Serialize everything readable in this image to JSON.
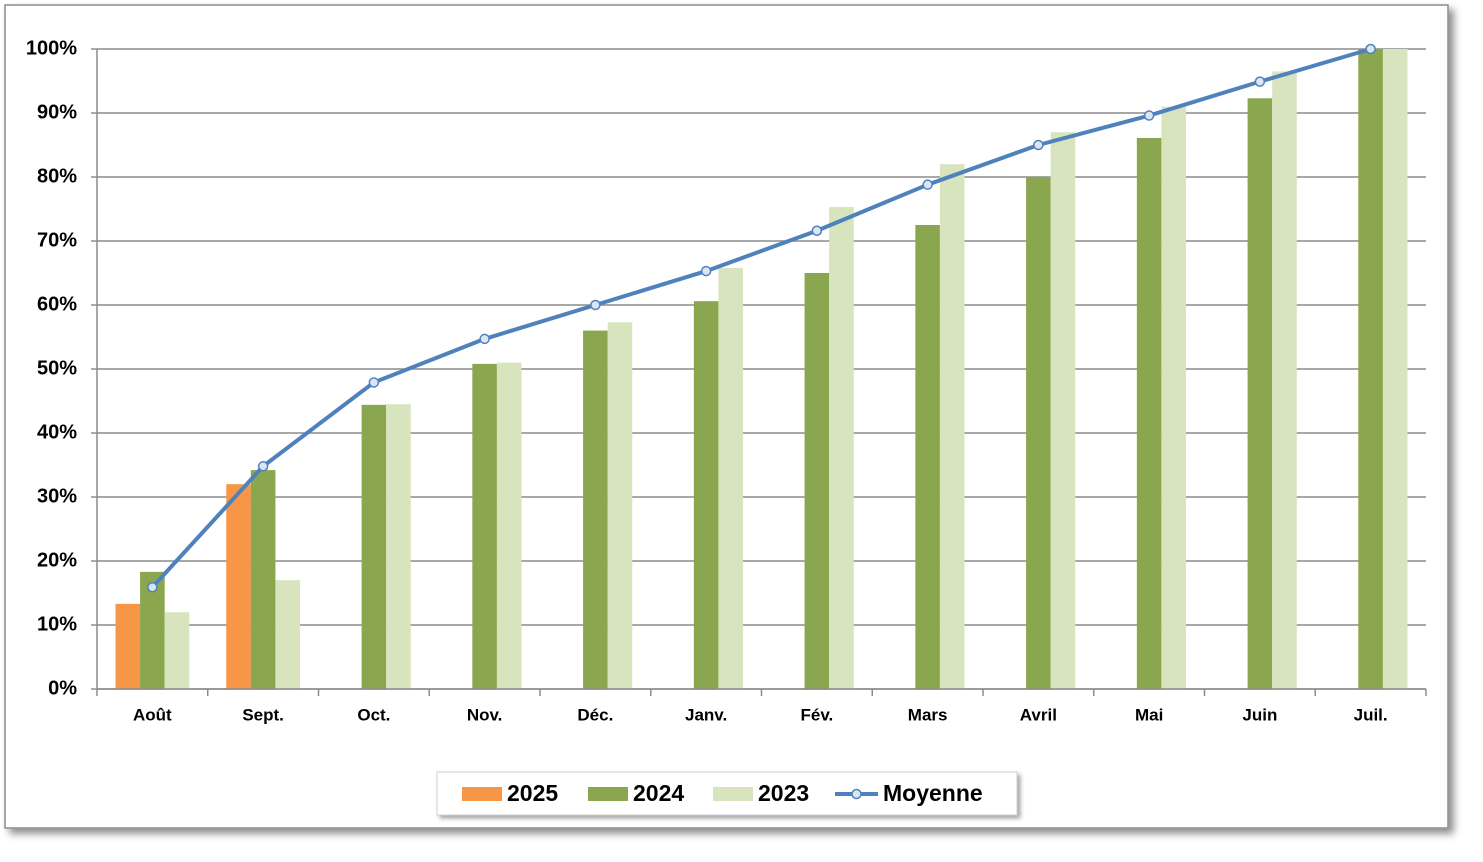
{
  "chart_data": {
    "type": "bar",
    "categories": [
      "Août",
      "Sept.",
      "Oct.",
      "Nov.",
      "Déc.",
      "Janv.",
      "Fév.",
      "Mars",
      "Avril",
      "Mai",
      "Juin",
      "Juil."
    ],
    "series": [
      {
        "name": "2025",
        "color": "#f79646",
        "values": [
          13.3,
          32,
          null,
          null,
          null,
          null,
          null,
          null,
          null,
          null,
          null,
          null
        ]
      },
      {
        "name": "2024",
        "color": "#8aa64f",
        "values": [
          18.3,
          34.2,
          44.4,
          50.8,
          56,
          60.6,
          65,
          72.5,
          80,
          86.1,
          92.3,
          100
        ]
      },
      {
        "name": "2023",
        "color": "#d7e4bd",
        "values": [
          12,
          17,
          44.5,
          51,
          57.3,
          65.8,
          75.3,
          82,
          87,
          91,
          96.5,
          100
        ]
      },
      {
        "name": "Moyenne",
        "type": "line",
        "color": "#4f81bd",
        "values": [
          15.9,
          34.8,
          47.9,
          54.7,
          60,
          65.3,
          71.6,
          78.8,
          85,
          89.6,
          94.9,
          100
        ]
      }
    ],
    "ylim": [
      0,
      100
    ],
    "yticks": [
      {
        "value": 0,
        "label": "0%"
      },
      {
        "value": 10,
        "label": "10%"
      },
      {
        "value": 20,
        "label": "20%"
      },
      {
        "value": 30,
        "label": "30%"
      },
      {
        "value": 40,
        "label": "40%"
      },
      {
        "value": 50,
        "label": "50%"
      },
      {
        "value": 60,
        "label": "60%"
      },
      {
        "value": 70,
        "label": "70%"
      },
      {
        "value": 80,
        "label": "80%"
      },
      {
        "value": 90,
        "label": "90%"
      },
      {
        "value": 100,
        "label": "100%"
      }
    ],
    "grid": true,
    "legend": "bottom"
  }
}
